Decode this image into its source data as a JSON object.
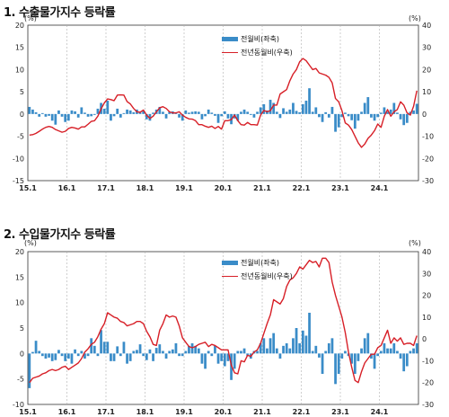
{
  "charts": [
    {
      "title": "1. 수출물가지수 등락률",
      "left_unit": "(%)",
      "right_unit": "(%)"
    },
    {
      "title": "2. 수입물가지수 등락률",
      "left_unit": "(%)",
      "right_unit": "(%)"
    }
  ],
  "colors": {
    "bar": "#3a8cc8",
    "line": "#d71f27",
    "vgrid": "#b0b0b0"
  },
  "chart_data": [
    {
      "type": "bar+line",
      "title": "1. 수출물가지수 등락률",
      "x_tick_labels": [
        "15.1",
        "16.1",
        "17.1",
        "18.1",
        "19.1",
        "20.1",
        "21.1",
        "22.1",
        "23.1",
        "24.1"
      ],
      "x_start": "2015-01",
      "x_end": "2024-12",
      "left_axis": {
        "range": [
          -15,
          20
        ],
        "ticks": [
          -15,
          -10,
          -5,
          0,
          5,
          10,
          15,
          20
        ],
        "unit": "(%)"
      },
      "right_axis": {
        "range": [
          -30,
          40
        ],
        "ticks": [
          -30,
          -20,
          -10,
          0,
          10,
          20,
          30,
          40
        ],
        "unit": "(%)"
      },
      "grid": "vertical dashed at each January",
      "legend_position": "top-right",
      "series": [
        {
          "name": "전월비(좌축)",
          "type": "bar",
          "axis": "left",
          "values": [
            1.6,
            1.0,
            0.4,
            -0.6,
            0.2,
            -0.6,
            -0.4,
            -1.5,
            -2.4,
            0.8,
            -0.6,
            -1.8,
            -1.5,
            0.8,
            0.6,
            -0.8,
            1.5,
            0.3,
            -0.6,
            -0.5,
            -0.2,
            1.2,
            2.5,
            1.2,
            3.0,
            -1.5,
            -0.5,
            1.2,
            -0.8,
            0.2,
            1.0,
            0.8,
            0.4,
            1.0,
            0.3,
            0.7,
            -1.2,
            -1.5,
            0.3,
            1.0,
            1.6,
            0.5,
            -1.0,
            0.5,
            0.6,
            0.2,
            -0.8,
            -1.5,
            0.8,
            0.3,
            0.5,
            0.6,
            0.5,
            -1.2,
            -0.5,
            1.0,
            0.3,
            -0.4,
            -2.0,
            -0.5,
            0.6,
            -1.0,
            -2.3,
            -1.0,
            -1.5,
            0.5,
            1.0,
            0.5,
            -0.2,
            -0.8,
            0.5,
            1.5,
            2.2,
            0.8,
            3.2,
            2.5,
            0.5,
            -0.9,
            1.3,
            0.5,
            1.0,
            2.5,
            0.7,
            0.4,
            2.2,
            3.0,
            5.8,
            0.5,
            1.5,
            -0.7,
            -1.8,
            0.4,
            -0.8,
            1.6,
            -4.0,
            -3.0,
            -0.7,
            0.3,
            -0.5,
            -1.4,
            -3.3,
            -1.5,
            0.5,
            2.5,
            3.8,
            -0.8,
            -1.5,
            -0.7,
            0.3,
            1.5,
            0.5,
            1.0,
            2.5,
            0.3,
            -1.2,
            -2.5,
            -2.0,
            0.5,
            0.8,
            2.3
          ]
        },
        {
          "name": "전년동월비(우축)",
          "type": "line",
          "axis": "right",
          "values": [
            -9.5,
            -9.3,
            -8.7,
            -7.8,
            -6.8,
            -6.0,
            -5.6,
            -6.0,
            -7.0,
            -7.6,
            -8.2,
            -7.8,
            -6.5,
            -6.0,
            -6.3,
            -6.8,
            -5.8,
            -5.8,
            -4.6,
            -3.3,
            -3.0,
            -1.0,
            2.3,
            5.0,
            6.8,
            6.5,
            6.0,
            8.5,
            8.6,
            8.5,
            5.6,
            4.5,
            2.5,
            1.0,
            0.8,
            1.8,
            -0.5,
            -2.0,
            -1.0,
            1.0,
            2.8,
            3.3,
            2.5,
            1.0,
            0.5,
            0.5,
            1.0,
            -0.5,
            -1.5,
            -2.2,
            -2.3,
            -3.0,
            -4.8,
            -4.8,
            -5.5,
            -6.0,
            -5.5,
            -6.5,
            -5.6,
            -6.8,
            -3.0,
            -3.0,
            -2.5,
            -0.5,
            -3.0,
            -4.8,
            -5.0,
            -3.8,
            -4.8,
            -4.8,
            -5.0,
            -0.5,
            1.6,
            1.0,
            1.5,
            4.0,
            4.0,
            9.0,
            10.0,
            11.0,
            15.0,
            18.0,
            20.0,
            23.5,
            25.0,
            24.0,
            22.0,
            20.0,
            20.5,
            18.5,
            18.0,
            17.5,
            16.5,
            14.0,
            7.0,
            5.5,
            1.5,
            -4.0,
            -5.0,
            -7.0,
            -10.0,
            -13.0,
            -15.0,
            -13.5,
            -11.0,
            -9.5,
            -7.5,
            -4.5,
            -6.0,
            -1.0,
            2.0,
            -1.0,
            1.0,
            2.0,
            5.5,
            4.0,
            0.5,
            -0.5,
            3.5,
            10.5
          ]
        }
      ]
    },
    {
      "type": "bar+line",
      "title": "2. 수입물가지수 등락률",
      "x_tick_labels": [
        "15.1",
        "16.1",
        "17.1",
        "18.1",
        "19.1",
        "20.1",
        "21.1",
        "22.1",
        "23.1",
        "24.1"
      ],
      "x_start": "2015-01",
      "x_end": "2024-12",
      "left_axis": {
        "range": [
          -10,
          20
        ],
        "ticks": [
          -10,
          -5,
          0,
          5,
          10,
          15,
          20
        ],
        "unit": "(%)"
      },
      "right_axis": {
        "range": [
          -30,
          40
        ],
        "ticks": [
          -30,
          -20,
          -10,
          0,
          10,
          20,
          30,
          40
        ],
        "unit": "(%)"
      },
      "grid": "vertical dashed at each January",
      "legend_position": "top-right",
      "series": [
        {
          "name": "전월비(좌축)",
          "type": "bar",
          "axis": "left",
          "values": [
            -6.8,
            0.3,
            2.5,
            0.5,
            -0.5,
            -1.0,
            -0.8,
            -1.5,
            -1.3,
            0.7,
            -0.5,
            -1.5,
            -1.0,
            -2.0,
            0.8,
            -0.5,
            0.5,
            -1.0,
            -0.5,
            3.0,
            1.5,
            -0.5,
            4.6,
            2.3,
            2.3,
            -1.5,
            -1.5,
            1.4,
            -0.5,
            2.3,
            -2.0,
            -1.5,
            0.5,
            0.7,
            1.8,
            -0.5,
            -1.3,
            0.8,
            -1.5,
            1.1,
            1.8,
            0.5,
            -1.0,
            0.5,
            0.8,
            2.0,
            -0.5,
            -0.5,
            0.5,
            1.5,
            2.0,
            1.5,
            1.0,
            -2.0,
            -3.0,
            0.5,
            -0.5,
            1.5,
            -2.0,
            -1.5,
            -2.5,
            -1.5,
            -5.2,
            -3.0,
            0.5,
            0.5,
            1.0,
            -0.5,
            -1.0,
            0.5,
            0.5,
            2.0,
            3.0,
            1.0,
            3.0,
            4.0,
            1.0,
            -1.0,
            1.5,
            2.0,
            1.0,
            3.0,
            5.0,
            2.0,
            4.5,
            3.5,
            8.0,
            0.5,
            1.5,
            -0.8,
            -4.0,
            0.5,
            2.0,
            3.0,
            -6.0,
            -4.0,
            -1.0,
            0.5,
            -0.5,
            -2.0,
            -4.0,
            -1.5,
            1.0,
            3.0,
            4.0,
            -1.0,
            -3.0,
            -0.5,
            0.5,
            2.0,
            1.0,
            1.0,
            2.0,
            0.5,
            -1.0,
            -3.5,
            -2.5,
            0.5,
            1.0,
            2.0
          ]
        },
        {
          "name": "전년동월비(우축)",
          "type": "line",
          "axis": "right",
          "values": [
            -20.0,
            -18.0,
            -17.5,
            -17.0,
            -16.0,
            -15.5,
            -14.5,
            -14.0,
            -14.5,
            -14.0,
            -13.0,
            -12.5,
            -14.0,
            -13.0,
            -12.0,
            -11.0,
            -9.0,
            -6.0,
            -4.5,
            -2.5,
            -1.5,
            1.0,
            4.5,
            7.0,
            12.0,
            11.0,
            10.0,
            9.5,
            8.0,
            7.5,
            6.0,
            6.5,
            7.0,
            8.0,
            8.0,
            7.0,
            3.5,
            1.0,
            -2.5,
            -3.0,
            4.0,
            7.0,
            11.0,
            10.0,
            10.5,
            10.0,
            6.0,
            0.5,
            -1.5,
            -3.5,
            -4.0,
            -3.5,
            -2.5,
            -2.0,
            -1.5,
            -3.5,
            -2.5,
            -3.0,
            -4.0,
            -5.0,
            -5.0,
            -5.0,
            -12.0,
            -15.5,
            -16.0,
            -10.0,
            -10.5,
            -7.5,
            -8.0,
            -6.0,
            -5.0,
            -2.0,
            2.5,
            7.0,
            11.0,
            18.0,
            17.0,
            16.0,
            18.5,
            24.0,
            27.0,
            28.0,
            30.0,
            33.0,
            32.0,
            34.0,
            36.0,
            35.0,
            35.5,
            33.0,
            37.0,
            37.0,
            35.0,
            26.0,
            20.0,
            15.0,
            10.0,
            3.0,
            -6.0,
            -13.0,
            -19.0,
            -20.0,
            -15.0,
            -11.0,
            -9.0,
            -7.0,
            -7.0,
            -4.0,
            -3.0,
            0.5,
            4.0,
            -2.0,
            0.5,
            -1.0,
            0.5,
            -2.5,
            -2.0,
            -2.0,
            -3.0,
            1.5
          ]
        }
      ]
    }
  ]
}
